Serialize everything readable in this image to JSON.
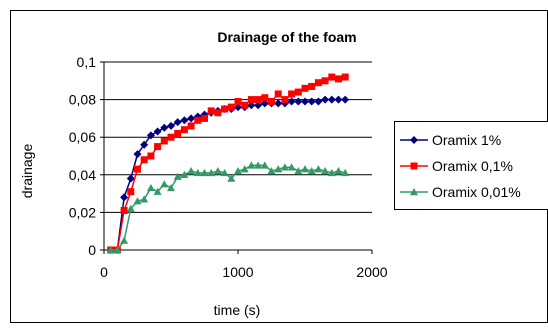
{
  "chart_data": {
    "type": "line",
    "title": "Drainage of the foam",
    "xlabel": "time (s)",
    "ylabel": "drainage",
    "xlim": [
      0,
      2000
    ],
    "ylim": [
      0,
      0.1
    ],
    "x_ticks": [
      {
        "value": 0,
        "label": "0"
      },
      {
        "value": 1000,
        "label": "1000"
      },
      {
        "value": 2000,
        "label": "2000"
      }
    ],
    "y_ticks": [
      {
        "value": 0,
        "label": "0"
      },
      {
        "value": 0.02,
        "label": "0,02"
      },
      {
        "value": 0.04,
        "label": "0,04"
      },
      {
        "value": 0.06,
        "label": "0,06"
      },
      {
        "value": 0.08,
        "label": "0,08"
      },
      {
        "value": 0.1,
        "label": "0,1"
      }
    ],
    "grid": {
      "horizontal": true,
      "vertical": false
    },
    "legend_position": "right",
    "series": [
      {
        "name": "Oramix 1%",
        "color": "#000080",
        "marker": "diamond",
        "x": [
          50,
          100,
          150,
          200,
          250,
          300,
          350,
          400,
          450,
          500,
          550,
          600,
          650,
          700,
          750,
          800,
          850,
          900,
          950,
          1000,
          1050,
          1100,
          1150,
          1200,
          1250,
          1300,
          1350,
          1400,
          1450,
          1500,
          1550,
          1600,
          1650,
          1700,
          1750,
          1800
        ],
        "y": [
          0,
          0,
          0.028,
          0.038,
          0.051,
          0.056,
          0.061,
          0.063,
          0.065,
          0.066,
          0.068,
          0.069,
          0.07,
          0.071,
          0.072,
          0.073,
          0.074,
          0.075,
          0.075,
          0.076,
          0.076,
          0.077,
          0.077,
          0.078,
          0.078,
          0.078,
          0.078,
          0.079,
          0.079,
          0.079,
          0.079,
          0.079,
          0.08,
          0.08,
          0.08,
          0.08
        ]
      },
      {
        "name": "Oramix 0,1%",
        "color": "#FF0000",
        "marker": "square",
        "x": [
          50,
          100,
          150,
          200,
          250,
          300,
          350,
          400,
          450,
          500,
          550,
          600,
          650,
          700,
          750,
          800,
          850,
          900,
          950,
          1000,
          1050,
          1100,
          1150,
          1200,
          1250,
          1300,
          1350,
          1400,
          1450,
          1500,
          1550,
          1600,
          1650,
          1700,
          1750,
          1800
        ],
        "y": [
          0,
          0,
          0.021,
          0.031,
          0.043,
          0.048,
          0.05,
          0.055,
          0.058,
          0.06,
          0.062,
          0.064,
          0.066,
          0.069,
          0.07,
          0.074,
          0.073,
          0.075,
          0.076,
          0.079,
          0.077,
          0.08,
          0.08,
          0.081,
          0.079,
          0.083,
          0.08,
          0.083,
          0.084,
          0.086,
          0.087,
          0.089,
          0.09,
          0.092,
          0.091,
          0.092
        ]
      },
      {
        "name": "Oramix 0,01%",
        "color": "#339966",
        "marker": "triangle",
        "x": [
          50,
          100,
          150,
          200,
          250,
          300,
          350,
          400,
          450,
          500,
          550,
          600,
          650,
          700,
          750,
          800,
          850,
          900,
          950,
          1000,
          1050,
          1100,
          1150,
          1200,
          1250,
          1300,
          1350,
          1400,
          1450,
          1500,
          1550,
          1600,
          1650,
          1700,
          1750,
          1800
        ],
        "y": [
          0,
          0,
          0.005,
          0.022,
          0.026,
          0.027,
          0.033,
          0.031,
          0.035,
          0.033,
          0.039,
          0.04,
          0.042,
          0.041,
          0.041,
          0.041,
          0.042,
          0.041,
          0.038,
          0.042,
          0.043,
          0.045,
          0.045,
          0.045,
          0.042,
          0.043,
          0.044,
          0.044,
          0.042,
          0.043,
          0.042,
          0.043,
          0.042,
          0.041,
          0.042,
          0.041
        ]
      }
    ]
  }
}
